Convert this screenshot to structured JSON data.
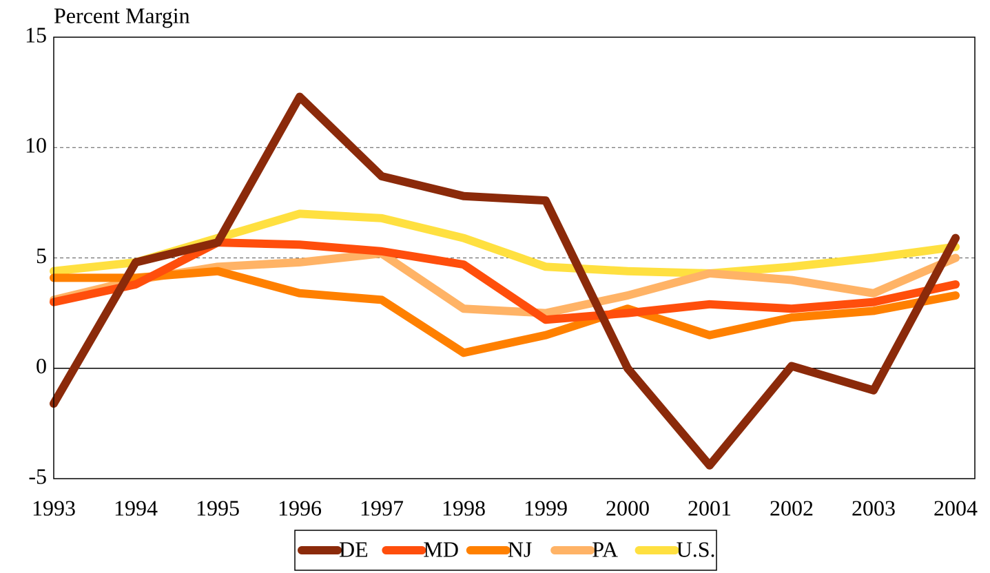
{
  "chart_data": {
    "type": "line",
    "title": "Percent Margin",
    "categories": [
      "1993",
      "1994",
      "1995",
      "1996",
      "1997",
      "1998",
      "1999",
      "2000",
      "2001",
      "2002",
      "2003",
      "2004"
    ],
    "series": [
      {
        "name": "DE",
        "color": "#8b2a0a",
        "values": [
          -1.6,
          4.8,
          5.7,
          12.3,
          8.7,
          7.8,
          7.6,
          0.0,
          -4.4,
          0.1,
          -1.0,
          5.9
        ]
      },
      {
        "name": "MD",
        "color": "#ff4e0c",
        "values": [
          3.0,
          3.8,
          5.7,
          5.6,
          5.3,
          4.7,
          2.2,
          2.5,
          2.9,
          2.7,
          3.0,
          3.8
        ]
      },
      {
        "name": "NJ",
        "color": "#ff8000",
        "values": [
          4.1,
          4.1,
          4.4,
          3.4,
          3.1,
          0.7,
          1.5,
          2.7,
          1.5,
          2.3,
          2.6,
          3.3
        ]
      },
      {
        "name": "PA",
        "color": "#ffb366",
        "values": [
          3.1,
          4.0,
          4.6,
          4.8,
          5.2,
          2.7,
          2.5,
          3.3,
          4.3,
          4.0,
          3.4,
          5.0
        ]
      },
      {
        "name": "U.S.",
        "color": "#ffe040",
        "values": [
          4.4,
          4.8,
          5.9,
          7.0,
          6.8,
          5.9,
          4.6,
          4.4,
          4.3,
          4.6,
          5.0,
          5.5
        ]
      }
    ],
    "ylim": [
      -5,
      15
    ],
    "yticks": [
      -5,
      0,
      5,
      10,
      15
    ],
    "grid": true,
    "legend": "bottom"
  }
}
